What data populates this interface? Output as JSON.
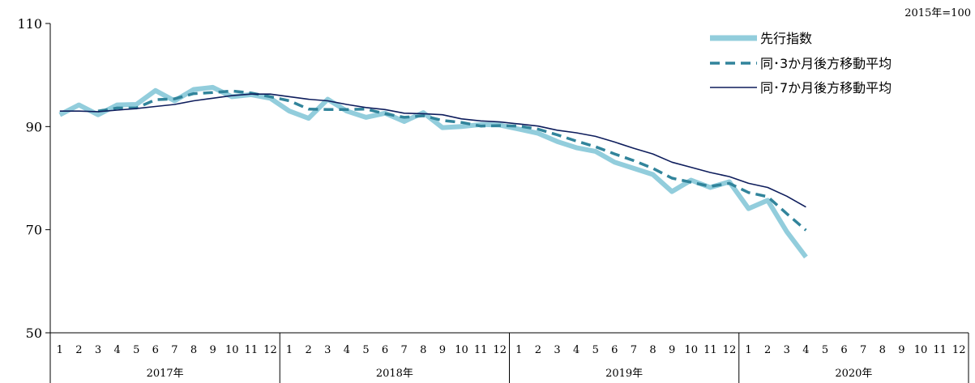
{
  "unit_label": "2015年=100",
  "chart_data": {
    "type": "line",
    "ylim": [
      50,
      110
    ],
    "yticks": [
      50,
      70,
      90,
      110
    ],
    "grid": false,
    "legend_position": "top-right",
    "years": [
      "2017年",
      "2018年",
      "2019年",
      "2020年"
    ],
    "months": [
      "1",
      "2",
      "3",
      "4",
      "5",
      "6",
      "7",
      "8",
      "9",
      "10",
      "11",
      "12"
    ],
    "colors": {
      "leading": "#92CDDC",
      "ma3": "#31849B",
      "ma7": "#0E1D5C"
    },
    "series": [
      {
        "name": "先行指数",
        "key": "leading",
        "values": [
          92.3,
          94.2,
          92.3,
          94.2,
          94.3,
          97.0,
          95.0,
          97.2,
          97.6,
          95.8,
          96.2,
          95.5,
          93.0,
          91.6,
          95.3,
          93.0,
          91.8,
          92.6,
          91.0,
          92.7,
          89.8,
          90.0,
          90.4,
          90.3,
          89.5,
          88.7,
          87.1,
          85.9,
          85.2,
          83.1,
          81.9,
          80.7,
          77.4,
          79.6,
          78.2,
          79.3,
          74.1,
          75.7,
          69.6,
          64.7,
          null,
          null,
          null,
          null,
          null,
          null,
          null,
          null
        ]
      },
      {
        "name": "同･3か月後方移動平均",
        "key": "ma3",
        "values": [
          null,
          null,
          93.0,
          93.6,
          93.6,
          95.2,
          95.4,
          96.4,
          96.6,
          96.9,
          96.5,
          95.8,
          95.0,
          93.4,
          93.3,
          93.3,
          93.4,
          92.5,
          91.8,
          92.1,
          91.2,
          90.8,
          90.1,
          90.2,
          90.1,
          89.5,
          88.4,
          87.2,
          86.1,
          84.7,
          83.4,
          81.9,
          80.0,
          79.2,
          78.4,
          79.0,
          77.2,
          76.4,
          73.1,
          69.9,
          null,
          null,
          null,
          null,
          null,
          null,
          null,
          null
        ]
      },
      {
        "name": "同･7か月後方移動平均",
        "key": "ma7",
        "values": [
          93.0,
          93.0,
          92.9,
          93.2,
          93.5,
          93.9,
          94.3,
          95.0,
          95.5,
          96.0,
          96.3,
          96.3,
          95.8,
          95.3,
          95.0,
          94.3,
          93.7,
          93.3,
          92.6,
          92.5,
          92.3,
          91.5,
          91.1,
          90.9,
          90.5,
          90.1,
          89.3,
          88.8,
          88.1,
          87.0,
          85.8,
          84.7,
          83.1,
          82.1,
          81.1,
          80.3,
          79.0,
          78.2,
          76.5,
          74.4,
          null,
          null,
          null,
          null,
          null,
          null,
          null,
          null
        ]
      }
    ]
  }
}
